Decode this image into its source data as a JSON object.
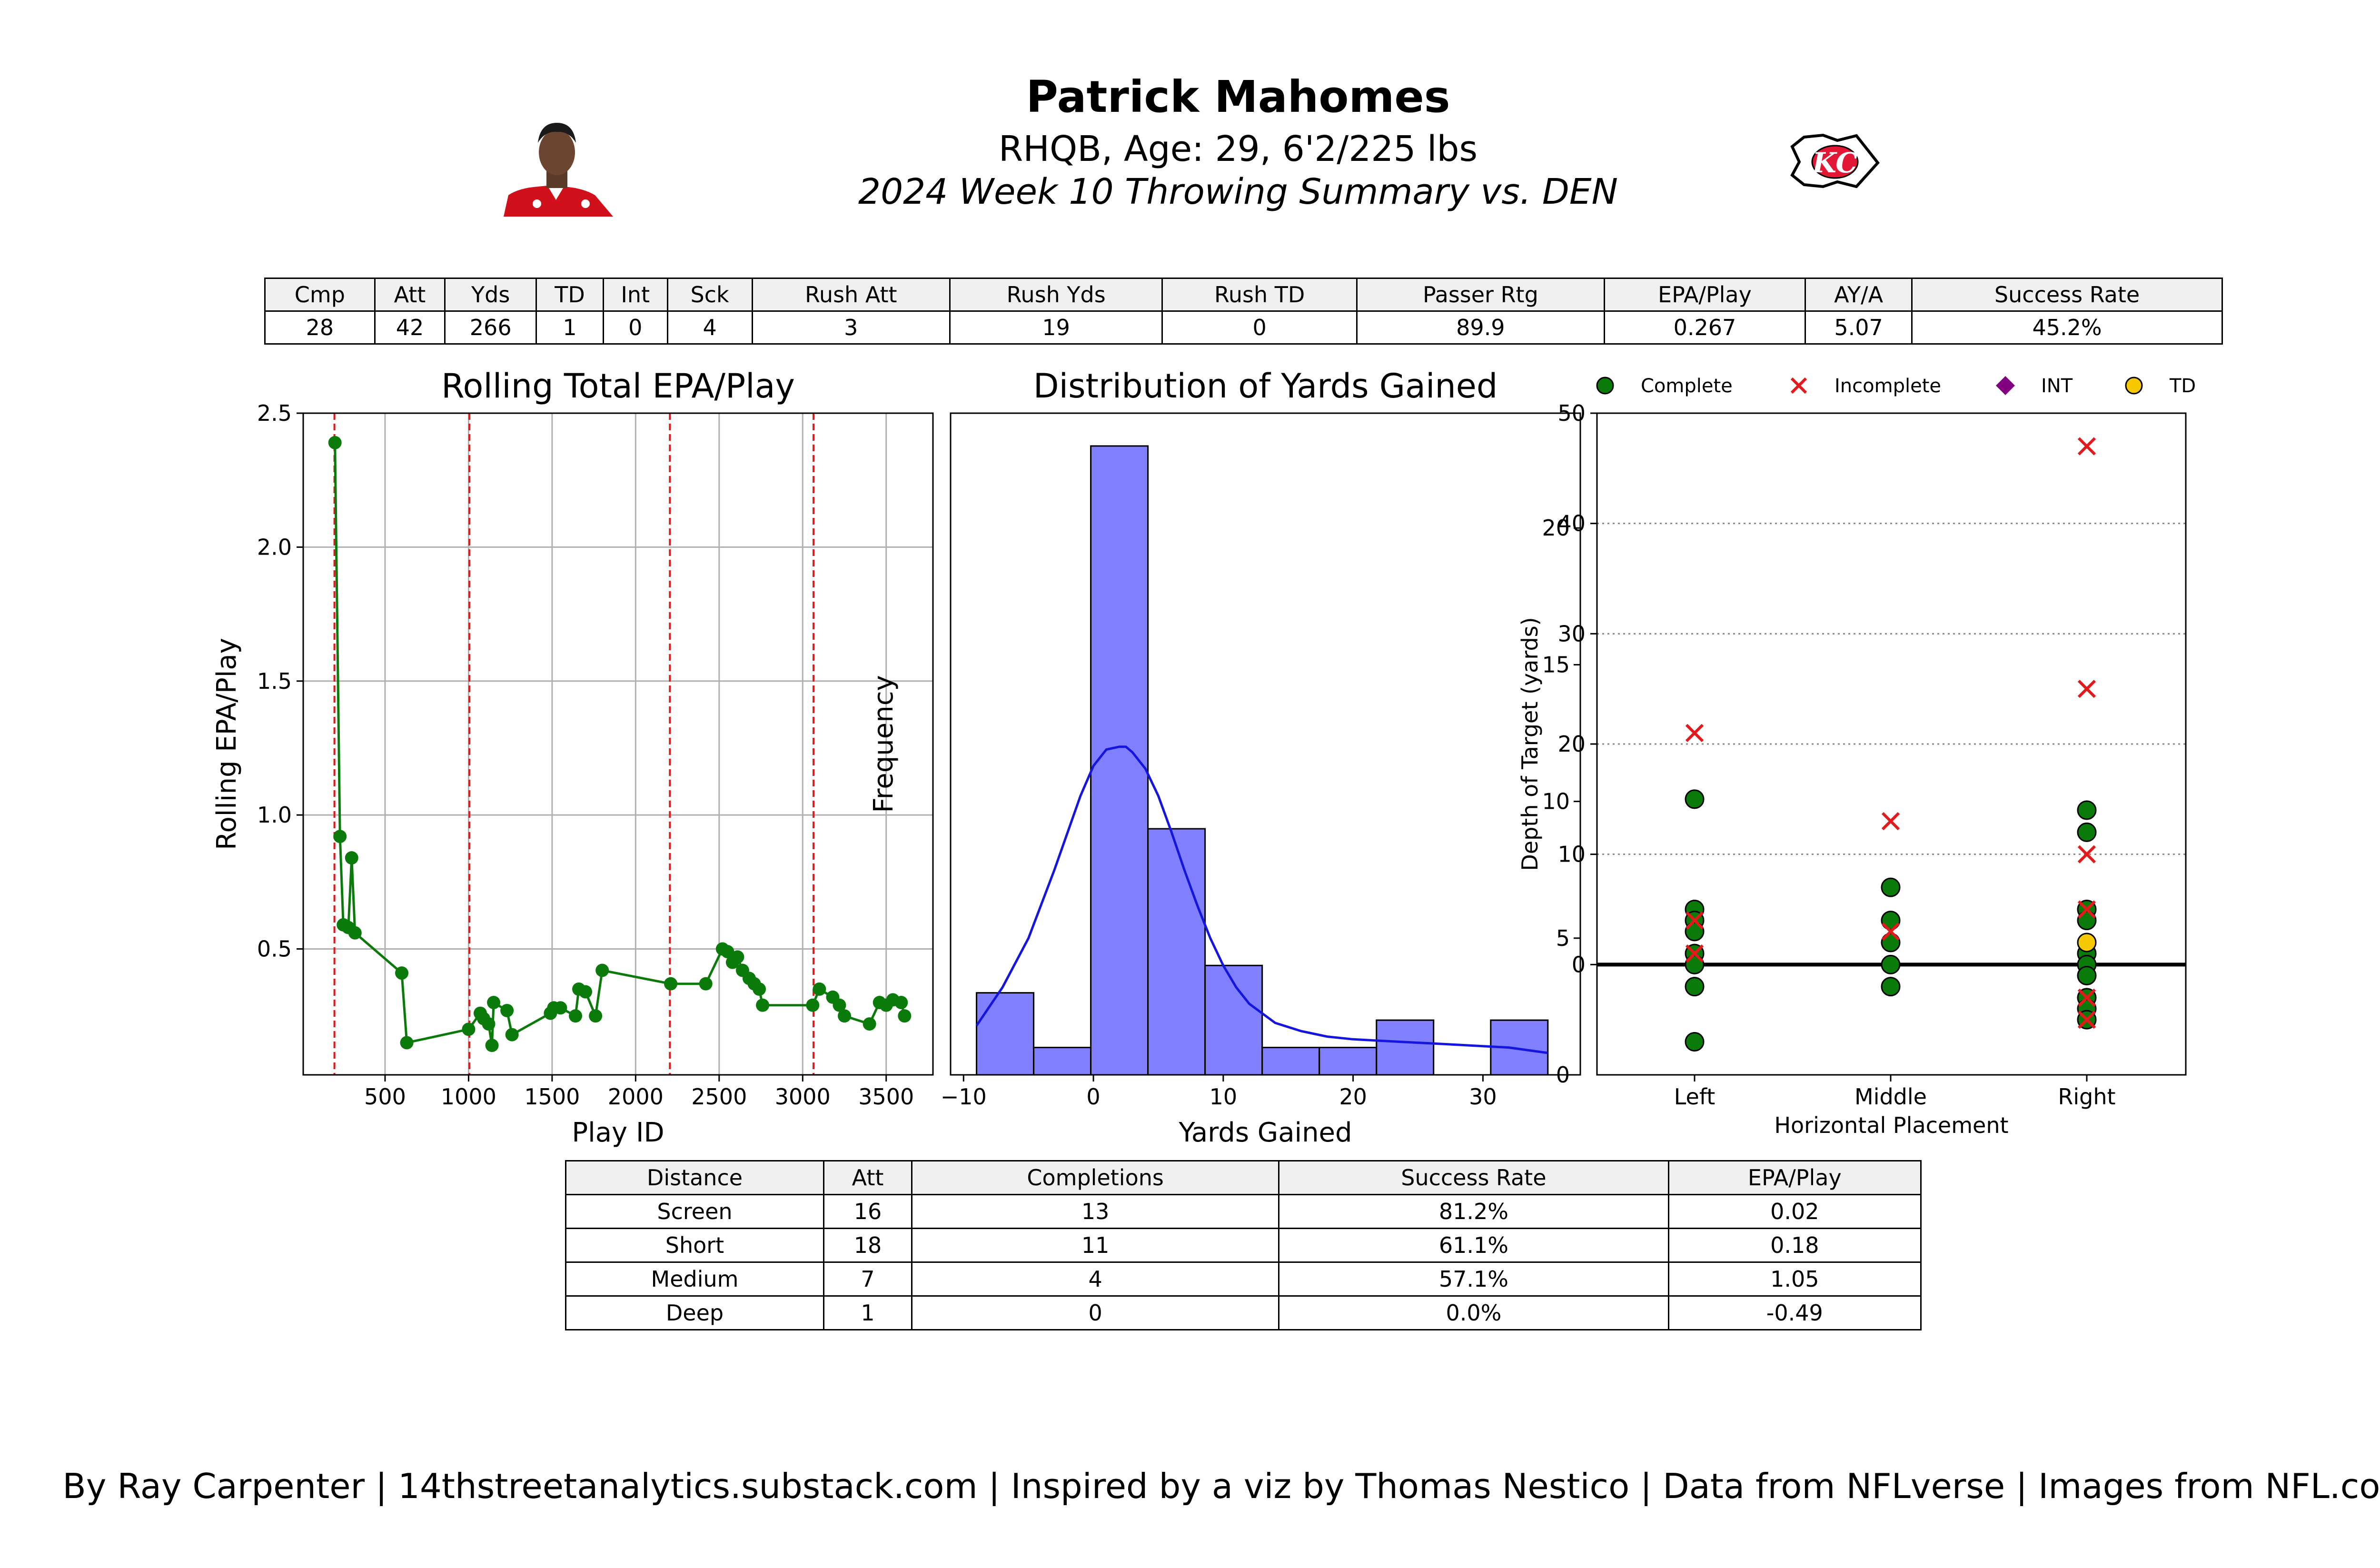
{
  "header": {
    "name": "Patrick Mahomes",
    "bio": "RHQB, Age: 29, 6'2/225 lbs",
    "subtitle": "2024 Week 10 Throwing Summary vs. DEN",
    "headshot_icon": "player-headshot-icon",
    "logo_icon": "kansas-city-chiefs-logo-icon"
  },
  "summary_table": {
    "headers": [
      "Cmp",
      "Att",
      "Yds",
      "TD",
      "Int",
      "Sck",
      "Rush Att",
      "Rush Yds",
      "Rush TD",
      "Passer Rtg",
      "EPA/Play",
      "AY/A",
      "Success Rate"
    ],
    "values": [
      "28",
      "42",
      "266",
      "1",
      "0",
      "4",
      "3",
      "19",
      "0",
      "89.9",
      "0.267",
      "5.07",
      "45.2%"
    ]
  },
  "distance_table": {
    "headers": [
      "Distance",
      "Att",
      "Completions",
      "Success Rate",
      "EPA/Play"
    ],
    "rows": [
      [
        "Screen",
        "16",
        "13",
        "81.2%",
        "0.02"
      ],
      [
        "Short",
        "18",
        "11",
        "61.1%",
        "0.18"
      ],
      [
        "Medium",
        "7",
        "4",
        "57.1%",
        "1.05"
      ],
      [
        "Deep",
        "1",
        "0",
        "0.0%",
        "-0.49"
      ]
    ]
  },
  "colors": {
    "green": "#0a7a0a",
    "red": "#e31a1c",
    "hist_fill": "#8080ff",
    "kde": "#1515e0",
    "int": "#800080",
    "td": "#f5c800",
    "grid": "#b0b0b0"
  },
  "chart_data": [
    {
      "type": "line",
      "title": "Rolling Total EPA/Play",
      "xlabel": "Play ID",
      "ylabel": "Rolling EPA/Play",
      "xlim": [
        10,
        3780
      ],
      "ylim": [
        0.03,
        2.5
      ],
      "xticks": [
        500,
        1000,
        1500,
        2000,
        2500,
        3000,
        3500
      ],
      "yticks": [
        0.5,
        1.0,
        1.5,
        2.0,
        2.5
      ],
      "grid": true,
      "quarter_lines": [
        197,
        1005,
        2205,
        3065
      ],
      "x": [
        200,
        230,
        250,
        280,
        300,
        320,
        600,
        630,
        1000,
        1070,
        1090,
        1120,
        1140,
        1150,
        1230,
        1260,
        1490,
        1510,
        1550,
        1640,
        1660,
        1700,
        1760,
        1800,
        2210,
        2420,
        2520,
        2550,
        2580,
        2610,
        2640,
        2680,
        2710,
        2740,
        2760,
        3060,
        3100,
        3180,
        3220,
        3250,
        3400,
        3460,
        3500,
        3540,
        3590,
        3610
      ],
      "y": [
        2.39,
        0.92,
        0.59,
        0.58,
        0.84,
        0.56,
        0.41,
        0.15,
        0.2,
        0.26,
        0.24,
        0.22,
        0.14,
        0.3,
        0.27,
        0.18,
        0.26,
        0.28,
        0.28,
        0.25,
        0.35,
        0.34,
        0.25,
        0.42,
        0.37,
        0.37,
        0.5,
        0.49,
        0.45,
        0.47,
        0.42,
        0.39,
        0.37,
        0.35,
        0.29,
        0.29,
        0.35,
        0.32,
        0.29,
        0.25,
        0.22,
        0.3,
        0.29,
        0.31,
        0.3,
        0.25
      ]
    },
    {
      "type": "bar",
      "title": "Distribution of Yards Gained",
      "xlabel": "Yards Gained",
      "ylabel": "Frequency",
      "xlim": [
        -11,
        37.5
      ],
      "ylim": [
        0,
        24.2
      ],
      "xticks": [
        -10,
        0,
        10,
        20,
        30
      ],
      "yticks": [
        0,
        5,
        10,
        15,
        20
      ],
      "bins": [
        [
          -9,
          -4.6
        ],
        [
          -4.6,
          -0.2
        ],
        [
          -0.2,
          4.2
        ],
        [
          4.2,
          8.6
        ],
        [
          8.6,
          13
        ],
        [
          13,
          17.4
        ],
        [
          17.4,
          21.8
        ],
        [
          21.8,
          26.2
        ],
        [
          26.2,
          30.6
        ],
        [
          30.6,
          35
        ]
      ],
      "values": [
        3,
        1,
        23,
        9,
        4,
        1,
        1,
        2,
        0,
        2
      ],
      "kde": {
        "x": [
          -9,
          -7,
          -5,
          -3,
          -1,
          0,
          1,
          2,
          2.5,
          3,
          4,
          5,
          6,
          7,
          8,
          9,
          10,
          11,
          12,
          14,
          16,
          18,
          20,
          22,
          24,
          26,
          28,
          30,
          32,
          35
        ],
        "y": [
          1.8,
          3.2,
          5.0,
          7.5,
          10.2,
          11.3,
          11.9,
          12.0,
          12.0,
          11.8,
          11.2,
          10.2,
          8.9,
          7.5,
          6.2,
          5.0,
          4.0,
          3.2,
          2.6,
          1.9,
          1.6,
          1.4,
          1.3,
          1.25,
          1.2,
          1.15,
          1.1,
          1.05,
          1.0,
          0.8
        ]
      }
    },
    {
      "type": "scatter",
      "xlabel": "Horizontal Placement",
      "ylabel": "Depth of Target (yards)",
      "categories": [
        "Left",
        "Middle",
        "Right"
      ],
      "ylim": [
        -10,
        50
      ],
      "yticks": [
        0,
        10,
        20,
        30,
        40,
        50
      ],
      "legend": [
        "Complete",
        "Incomplete",
        "INT",
        "TD"
      ],
      "legend_position": "top",
      "series": [
        {
          "name": "Complete",
          "marker": "circle",
          "points": [
            [
              "Left",
              15
            ],
            [
              "Left",
              5
            ],
            [
              "Left",
              4
            ],
            [
              "Left",
              3
            ],
            [
              "Left",
              1
            ],
            [
              "Left",
              0
            ],
            [
              "Left",
              -2
            ],
            [
              "Left",
              -7
            ],
            [
              "Middle",
              7
            ],
            [
              "Middle",
              4
            ],
            [
              "Middle",
              2
            ],
            [
              "Middle",
              0
            ],
            [
              "Middle",
              -2
            ],
            [
              "Right",
              14
            ],
            [
              "Right",
              12
            ],
            [
              "Right",
              5
            ],
            [
              "Right",
              4
            ],
            [
              "Right",
              1
            ],
            [
              "Right",
              0
            ],
            [
              "Right",
              -1
            ],
            [
              "Right",
              -3
            ],
            [
              "Right",
              -4
            ],
            [
              "Right",
              -5
            ]
          ]
        },
        {
          "name": "Incomplete",
          "marker": "x",
          "points": [
            [
              "Left",
              21
            ],
            [
              "Left",
              4
            ],
            [
              "Left",
              1
            ],
            [
              "Middle",
              13
            ],
            [
              "Middle",
              3
            ],
            [
              "Right",
              47
            ],
            [
              "Right",
              25
            ],
            [
              "Right",
              10
            ],
            [
              "Right",
              5
            ],
            [
              "Right",
              -3
            ],
            [
              "Right",
              -5
            ]
          ]
        },
        {
          "name": "INT",
          "marker": "diamond",
          "points": []
        },
        {
          "name": "TD",
          "marker": "circle",
          "points": [
            [
              "Right",
              2
            ]
          ]
        }
      ]
    }
  ],
  "footer": "By Ray Carpenter | 14thstreetanalytics.substack.com | Inspired by a viz by Thomas Nestico | Data from NFLverse | Images from NFL.com"
}
